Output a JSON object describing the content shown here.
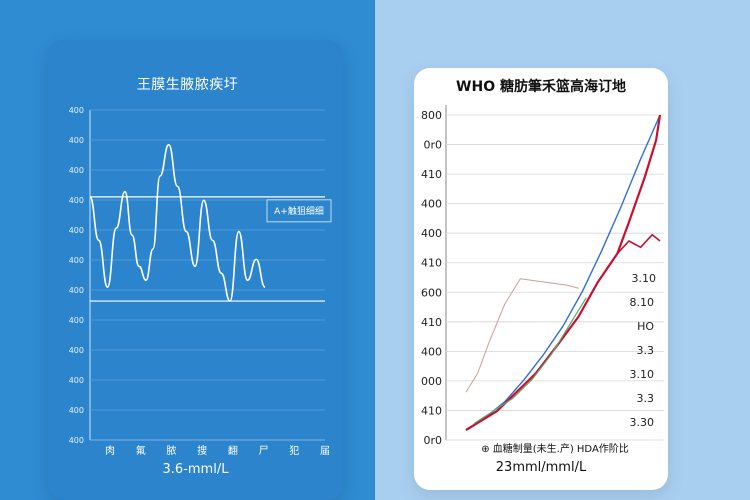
{
  "chart_data": [
    {
      "type": "line",
      "title": "王膜生腋脓疾圩",
      "unit_label": "3.6-mml/L",
      "y_ticks": [
        "400",
        "400",
        "400",
        "400",
        "400",
        "400",
        "400",
        "400",
        "400",
        "400",
        "400",
        "400"
      ],
      "x_ticks": [
        "肉",
        "氟",
        "脓",
        "搜",
        "翻",
        "尸",
        "犯",
        "届"
      ],
      "reference_line_label": "A+触狙细细",
      "colors": {
        "line": "#ffffff",
        "gridline": "#5aa4dd",
        "background": "#2b84cc"
      },
      "series": [
        {
          "x": [
            0,
            0.5,
            1,
            1.5,
            2,
            2.4,
            2.8,
            3.2,
            3.6,
            4,
            4.5,
            5,
            5.5,
            6,
            6.5,
            7,
            7.5,
            8,
            8.5,
            9,
            9.5,
            10
          ],
          "values": [
            60,
            35,
            8,
            42,
            63,
            38,
            20,
            12,
            30,
            72,
            90,
            66,
            40,
            20,
            58,
            35,
            16,
            0,
            40,
            12,
            24,
            8
          ]
        }
      ],
      "ylim": [
        -80,
        110
      ],
      "reference_lines": [
        60,
        0
      ]
    },
    {
      "type": "line",
      "title": "WHO 糖肪筆禾篮高海订地",
      "unit_label": "23mml/mml/L",
      "y_ticks": [
        "800",
        "0r0",
        "410",
        "400",
        "400",
        "410",
        "600",
        "410",
        "400",
        "000",
        "410",
        "0r0"
      ],
      "annotations": [
        "3.10",
        "8.10",
        "HO",
        "3.3",
        "3.10",
        "3.3",
        "3.30"
      ],
      "legend": "⊕ 血糖制量(未生.产) HDA作阶比",
      "colors": {
        "blue": "#2f6fd6",
        "red": "#c8102e",
        "pink": "#d49a9a",
        "green": "#5aa86a",
        "gridline": "#d6d6d6"
      },
      "series": [
        {
          "name": "blue",
          "x": [
            0,
            10,
            20,
            30,
            40,
            50,
            60,
            70,
            80,
            90,
            100
          ],
          "values": [
            0,
            4,
            9,
            16,
            24,
            33,
            44,
            57,
            71,
            86,
            100
          ]
        },
        {
          "name": "red",
          "x": [
            0,
            8,
            16,
            26,
            36,
            46,
            58,
            68,
            78,
            84,
            92,
            98,
            100
          ],
          "values": [
            0,
            3,
            6,
            12,
            18,
            26,
            36,
            47,
            56,
            66,
            80,
            92,
            100
          ]
        },
        {
          "name": "red-branch",
          "x": [
            78,
            84,
            90,
            96,
            100
          ],
          "values": [
            56,
            60,
            58,
            62,
            60
          ]
        },
        {
          "name": "green",
          "x": [
            4,
            14,
            24,
            34,
            44,
            54,
            62
          ],
          "values": [
            2,
            6,
            10,
            16,
            24,
            34,
            42
          ]
        },
        {
          "name": "pink",
          "x": [
            0,
            6,
            12,
            20,
            28,
            40,
            52,
            58
          ],
          "values": [
            12,
            18,
            28,
            40,
            48,
            47,
            46,
            45
          ]
        }
      ],
      "ylim": [
        0,
        100
      ],
      "xlim": [
        0,
        100
      ]
    }
  ]
}
